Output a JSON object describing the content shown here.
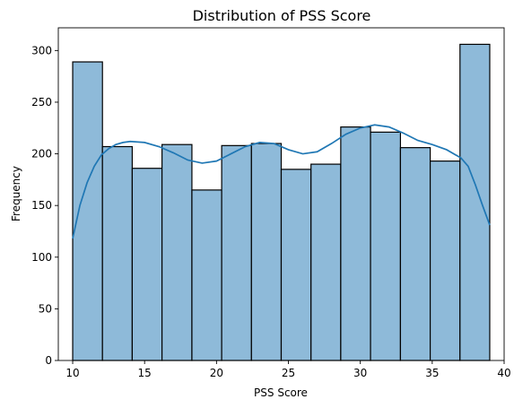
{
  "chart_data": {
    "type": "bar",
    "title": "Distribution of PSS Score",
    "xlabel": "PSS Score",
    "ylabel": "Frequency",
    "xlim": [
      9.0,
      40.0
    ],
    "ylim": [
      0,
      322
    ],
    "xticks": [
      10,
      15,
      20,
      25,
      30,
      35,
      40
    ],
    "yticks": [
      0,
      50,
      100,
      150,
      200,
      250,
      300
    ],
    "grid": false,
    "bins": [
      {
        "x0": 10.0,
        "x1": 12.07,
        "value": 289
      },
      {
        "x0": 12.07,
        "x1": 14.14,
        "value": 207
      },
      {
        "x0": 14.14,
        "x1": 16.21,
        "value": 186
      },
      {
        "x0": 16.21,
        "x1": 18.29,
        "value": 209
      },
      {
        "x0": 18.29,
        "x1": 20.36,
        "value": 165
      },
      {
        "x0": 20.36,
        "x1": 22.43,
        "value": 208
      },
      {
        "x0": 22.43,
        "x1": 24.5,
        "value": 210
      },
      {
        "x0": 24.5,
        "x1": 26.57,
        "value": 185
      },
      {
        "x0": 26.57,
        "x1": 28.64,
        "value": 190
      },
      {
        "x0": 28.64,
        "x1": 30.71,
        "value": 226
      },
      {
        "x0": 30.71,
        "x1": 32.79,
        "value": 221
      },
      {
        "x0": 32.79,
        "x1": 34.86,
        "value": 206
      },
      {
        "x0": 34.86,
        "x1": 36.93,
        "value": 193
      },
      {
        "x0": 36.93,
        "x1": 39.0,
        "value": 306
      }
    ],
    "kde": {
      "x": [
        10,
        10.5,
        11,
        11.5,
        12,
        12.5,
        13,
        13.5,
        14,
        15,
        16,
        17,
        18,
        19,
        20,
        21,
        22,
        23,
        24,
        25,
        26,
        27,
        28,
        29,
        30,
        31,
        32,
        33,
        34,
        35,
        36,
        37,
        37.5,
        38,
        38.5,
        39
      ],
      "y": [
        118,
        150,
        172,
        188,
        199,
        205,
        209,
        211,
        212,
        211,
        207,
        201,
        194,
        191,
        193,
        200,
        207,
        211,
        210,
        204,
        200,
        202,
        210,
        219,
        225,
        228,
        226,
        220,
        213,
        209,
        204,
        196,
        188,
        170,
        150,
        131
      ]
    },
    "colors": {
      "bar_fill": "#8ebad9",
      "bar_edge": "#000000",
      "kde_line": "#1f77b4"
    }
  }
}
